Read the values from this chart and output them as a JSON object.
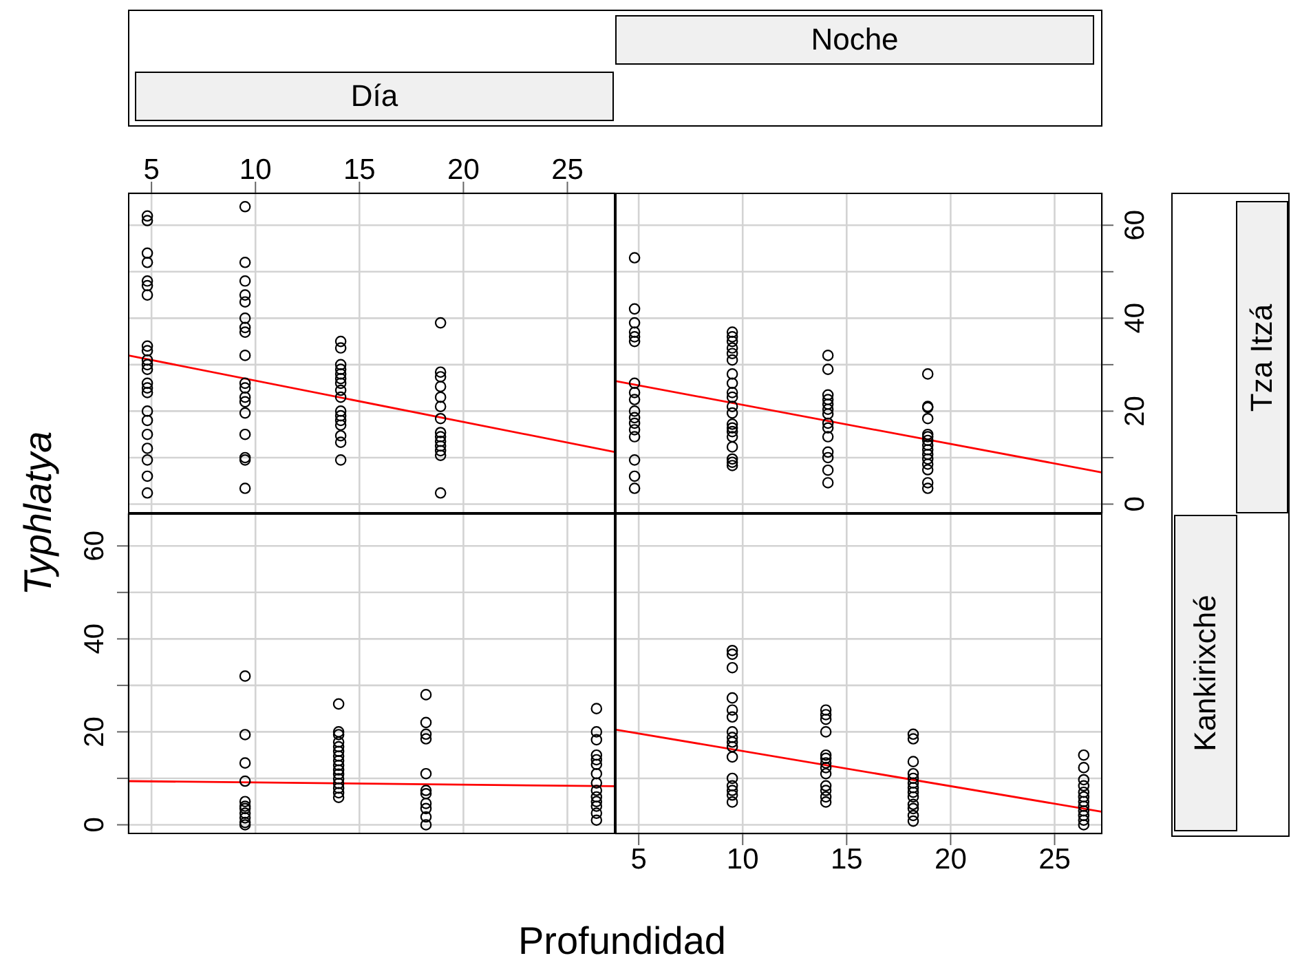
{
  "chart_data": [
    {
      "type": "scatter",
      "title": "Día",
      "xlim": [
        3.87,
        27.3
      ],
      "xticks": [
        5,
        10,
        15,
        20,
        25
      ],
      "ylim": [
        -2,
        67
      ],
      "yticks": [
        0,
        {
          "value": 10,
          "label": null
        },
        20,
        {
          "value": 30,
          "label": null
        },
        40,
        {
          "value": 50,
          "label": null
        },
        60
      ],
      "tick_labels": "x",
      "grid": true,
      "marker": "circle",
      "series": [
        {
          "color": "#000000",
          "x": [
            4.8,
            4.8,
            4.8,
            4.8,
            4.8,
            4.8,
            4.8,
            4.8,
            4.8,
            4.8,
            4.8,
            4.8,
            4.8,
            4.8,
            4.8,
            4.8,
            4.8,
            4.8,
            4.8,
            4.8,
            4.8,
            4.8,
            9.5,
            9.5,
            9.5,
            9.5,
            9.5,
            9.5,
            9.5,
            9.5,
            9.5,
            9.5,
            9.5,
            9.5,
            9.5,
            9.5,
            9.5,
            9.5,
            9.5,
            9.5,
            14.1,
            14.1,
            14.1,
            14.1,
            14.1,
            14.1,
            14.1,
            14.1,
            14.1,
            14.1,
            14.1,
            14.1,
            14.1,
            14.1,
            14.1,
            14.1,
            18.9,
            18.9,
            18.9,
            18.9,
            18.9,
            18.9,
            18.9,
            18.9,
            18.9,
            18.9,
            18.9,
            18.9,
            18.9,
            18.9
          ],
          "values": [
            62,
            61,
            54,
            52,
            48,
            47,
            45,
            34,
            33,
            31,
            30,
            29,
            26,
            25,
            24,
            20,
            18,
            15,
            12,
            9.5,
            6,
            2.4,
            64,
            52,
            48,
            45,
            43.5,
            40,
            38,
            37,
            32,
            26,
            25,
            23,
            22,
            19.6,
            15,
            10,
            9.5,
            3.4,
            35,
            33.6,
            30,
            29,
            28,
            27,
            26,
            24.5,
            23,
            20,
            19,
            18,
            17,
            14.7,
            13.3,
            9.5,
            39,
            28.4,
            27.4,
            25.3,
            23,
            21,
            18.4,
            15.4,
            14.5,
            13.5,
            12.5,
            11.5,
            10.5,
            2.4
          ]
        },
        {
          "type": "line",
          "marker": "none",
          "color": "#ff0000",
          "x": [
            3.87,
            27.3
          ],
          "values": [
            32,
            11.2
          ]
        }
      ]
    },
    {
      "type": "scatter",
      "title": "Noche",
      "xlim": [
        3.87,
        27.3
      ],
      "xticks": [
        5,
        10,
        15,
        20,
        25
      ],
      "ylim": [
        -2,
        67
      ],
      "yticks": [
        0,
        {
          "value": 10,
          "label": null
        },
        20,
        {
          "value": 30,
          "label": null
        },
        40,
        {
          "value": 50,
          "label": null
        },
        60
      ],
      "tick_labels": "y",
      "grid": true,
      "marker": "circle",
      "series": [
        {
          "color": "#000000",
          "x": [
            4.8,
            4.8,
            4.8,
            4.8,
            4.8,
            4.8,
            4.8,
            4.8,
            4.8,
            4.8,
            4.8,
            4.8,
            4.8,
            4.8,
            4.8,
            4.8,
            4.8,
            9.5,
            9.5,
            9.5,
            9.5,
            9.5,
            9.5,
            9.5,
            9.5,
            9.5,
            9.5,
            9.5,
            9.5,
            9.5,
            9.5,
            9.5,
            9.5,
            9.5,
            9.5,
            9.5,
            9.5,
            14.1,
            14.1,
            14.1,
            14.1,
            14.1,
            14.1,
            14.1,
            14.1,
            14.1,
            14.1,
            14.1,
            14.1,
            14.1,
            14.1,
            18.9,
            18.9,
            18.9,
            18.9,
            18.9,
            18.9,
            18.9,
            18.9,
            18.9,
            18.9,
            18.9,
            18.9,
            18.9,
            18.9,
            18.9
          ],
          "values": [
            53,
            42,
            39,
            37,
            36,
            35,
            26,
            24,
            22.5,
            20,
            18.6,
            17.4,
            16,
            14.5,
            9.5,
            6,
            3.4,
            37,
            36,
            35,
            33.6,
            32.4,
            31,
            28,
            26,
            24,
            23,
            21,
            19.6,
            17.2,
            16.4,
            15.6,
            14.5,
            12.3,
            9.7,
            9,
            8.3,
            32,
            29,
            23.5,
            22.5,
            21.5,
            20.4,
            19.4,
            17.4,
            16.4,
            14.5,
            11.2,
            10,
            7.3,
            4.6,
            28,
            21,
            20.8,
            18.4,
            15,
            14.5,
            13.7,
            12.7,
            11.7,
            10.7,
            9.7,
            8.6,
            7.4,
            4.6,
            3.4
          ]
        },
        {
          "type": "line",
          "marker": "none",
          "color": "#ff0000",
          "x": [
            3.87,
            27.3
          ],
          "values": [
            26.5,
            6.8
          ]
        }
      ]
    },
    {
      "type": "scatter",
      "ylabel": "Typhlatya",
      "xlim": [
        3.87,
        27.3
      ],
      "xticks": [
        5,
        10,
        15,
        20,
        25
      ],
      "ylim": [
        -2,
        67
      ],
      "yticks": [
        0,
        {
          "value": 10,
          "label": null
        },
        20,
        {
          "value": 30,
          "label": null
        },
        40,
        {
          "value": 50,
          "label": null
        },
        60
      ],
      "tick_labels": "y",
      "grid": true,
      "marker": "circle",
      "series": [
        {
          "color": "#000000",
          "x": [
            9.5,
            9.5,
            9.5,
            9.5,
            9.5,
            9.5,
            9.5,
            9.5,
            9.5,
            9.5,
            9.5,
            14,
            14,
            14,
            14,
            14,
            14,
            14,
            14,
            14,
            14,
            14,
            14,
            14,
            14,
            14,
            14,
            18.2,
            18.2,
            18.2,
            18.2,
            18.2,
            18.2,
            18.2,
            18.2,
            18.2,
            18.2,
            18.2,
            26.4,
            26.4,
            26.4,
            26.4,
            26.4,
            26.4,
            26.4,
            26.4,
            26.4,
            26.4,
            26.4,
            26.4,
            26.4,
            26.4
          ],
          "values": [
            32,
            19.4,
            13.3,
            9.4,
            5,
            4,
            3.5,
            2.5,
            1.5,
            0.5,
            0,
            26,
            20,
            19.4,
            17.8,
            16.8,
            15.8,
            14.8,
            13.8,
            12.8,
            11.8,
            10.9,
            9.9,
            8.9,
            7.9,
            6.9,
            5.9,
            28,
            22,
            19.5,
            18.5,
            11,
            7.4,
            6.7,
            4.6,
            3.5,
            1.7,
            0,
            25,
            20,
            18.3,
            15,
            14,
            13,
            11,
            9,
            7.4,
            6,
            5,
            4,
            2.5,
            1
          ]
        },
        {
          "type": "line",
          "marker": "none",
          "color": "#ff0000",
          "x": [
            3.87,
            27.3
          ],
          "values": [
            9.4,
            8.3
          ]
        }
      ]
    },
    {
      "type": "scatter",
      "xlabel": "Profundidad",
      "xlim": [
        3.87,
        27.3
      ],
      "xticks": [
        5,
        10,
        15,
        20,
        25
      ],
      "ylim": [
        -2,
        67
      ],
      "yticks": [
        0,
        {
          "value": 10,
          "label": null
        },
        20,
        {
          "value": 30,
          "label": null
        },
        40,
        {
          "value": 50,
          "label": null
        },
        60
      ],
      "tick_labels": "x",
      "grid": true,
      "marker": "circle",
      "series": [
        {
          "color": "#000000",
          "x": [
            9.5,
            9.5,
            9.5,
            9.5,
            9.5,
            9.5,
            9.5,
            9.5,
            9.5,
            9.5,
            9.5,
            9.5,
            9.5,
            9.5,
            9.5,
            9.5,
            14,
            14,
            14,
            14,
            14,
            14,
            14,
            14,
            14,
            14,
            14,
            14,
            14,
            18.2,
            18.2,
            18.2,
            18.2,
            18.2,
            18.2,
            18.2,
            18.2,
            18.2,
            18.2,
            18.2,
            18.2,
            18.2,
            26.4,
            26.4,
            26.4,
            26.4,
            26.4,
            26.4,
            26.4,
            26.4,
            26.4,
            26.4,
            26.4,
            26.4
          ],
          "values": [
            37.5,
            36.7,
            33.8,
            27.3,
            24.7,
            23.2,
            20,
            18.8,
            17.8,
            16.8,
            14.6,
            10,
            8.4,
            7.4,
            6.4,
            4.9,
            24.7,
            23.7,
            22.7,
            20,
            15,
            14.3,
            13.3,
            12.3,
            11,
            8.4,
            7.4,
            6,
            4.9,
            19.5,
            18.5,
            13.6,
            11,
            10,
            9,
            8,
            7,
            6,
            4.4,
            3.5,
            2,
            0.8,
            15,
            12.3,
            9.7,
            8.4,
            7,
            6,
            5,
            4,
            3,
            2,
            1,
            0
          ]
        },
        {
          "type": "line",
          "marker": "none",
          "color": "#ff0000",
          "x": [
            3.87,
            27.3
          ],
          "values": [
            20.5,
            2.8
          ]
        }
      ]
    },
    {
      "type": "other",
      "title": "Tza Itzá"
    },
    {
      "type": "other",
      "title": "Kankirixché"
    }
  ]
}
